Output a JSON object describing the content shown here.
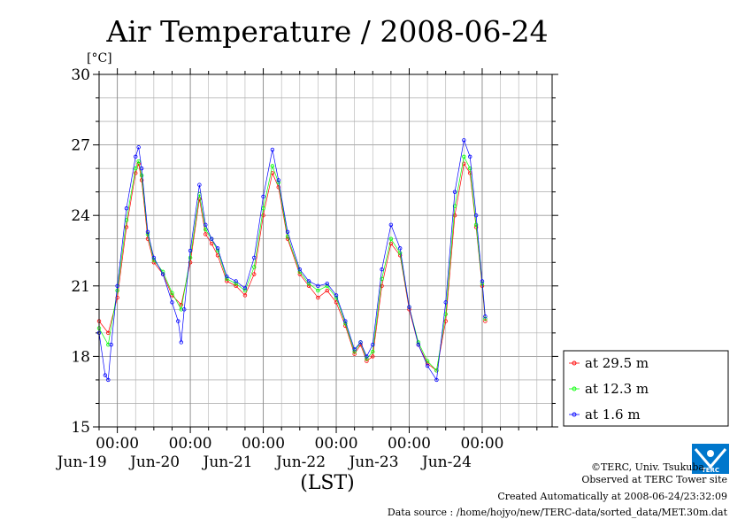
{
  "chart_data": {
    "type": "line",
    "title": "Air Temperature / 2008-06-24",
    "xlabel": "(LST)",
    "ylabel": "[°C]",
    "ylim": [
      15,
      30
    ],
    "yticks": [
      "15",
      "18",
      "21",
      "24",
      "27",
      "30"
    ],
    "x_range": [
      "2008-06-18 18:00",
      "2008-06-24 23:00"
    ],
    "x_ticks": [
      {
        "time": "2008-06-19 00:00",
        "label": "00:00",
        "date": "Jun-19"
      },
      {
        "time": "2008-06-20 00:00",
        "label": "00:00",
        "date": "Jun-20"
      },
      {
        "time": "2008-06-21 00:00",
        "label": "00:00",
        "date": "Jun-21"
      },
      {
        "time": "2008-06-22 00:00",
        "label": "00:00",
        "date": "Jun-22"
      },
      {
        "time": "2008-06-23 00:00",
        "label": "00:00",
        "date": "Jun-23"
      },
      {
        "time": "2008-06-24 00:00",
        "label": "00:00",
        "date": "Jun-24"
      }
    ],
    "grid": true,
    "legend_position": "lower-right outside",
    "series": [
      {
        "name": "at 29.5 m",
        "color": "#ff0000",
        "points": [
          [
            "2008-06-18 18:00",
            19.5
          ],
          [
            "2008-06-18 21:00",
            19.0
          ],
          [
            "2008-06-19 00:00",
            20.5
          ],
          [
            "2008-06-19 03:00",
            23.5
          ],
          [
            "2008-06-19 06:00",
            25.8
          ],
          [
            "2008-06-19 07:00",
            26.2
          ],
          [
            "2008-06-19 08:00",
            25.5
          ],
          [
            "2008-06-19 10:00",
            23.0
          ],
          [
            "2008-06-19 12:00",
            22.0
          ],
          [
            "2008-06-19 15:00",
            21.5
          ],
          [
            "2008-06-19 18:00",
            20.6
          ],
          [
            "2008-06-19 21:00",
            20.2
          ],
          [
            "2008-06-20 00:00",
            22.0
          ],
          [
            "2008-06-20 03:00",
            24.7
          ],
          [
            "2008-06-20 05:00",
            23.2
          ],
          [
            "2008-06-20 07:00",
            22.8
          ],
          [
            "2008-06-20 09:00",
            22.3
          ],
          [
            "2008-06-20 12:00",
            21.2
          ],
          [
            "2008-06-20 15:00",
            21.0
          ],
          [
            "2008-06-20 18:00",
            20.6
          ],
          [
            "2008-06-20 21:00",
            21.5
          ],
          [
            "2008-06-21 00:00",
            24.0
          ],
          [
            "2008-06-21 03:00",
            25.8
          ],
          [
            "2008-06-21 05:00",
            25.2
          ],
          [
            "2008-06-21 08:00",
            23.0
          ],
          [
            "2008-06-21 12:00",
            21.5
          ],
          [
            "2008-06-21 15:00",
            21.0
          ],
          [
            "2008-06-21 18:00",
            20.5
          ],
          [
            "2008-06-21 21:00",
            20.8
          ],
          [
            "2008-06-22 00:00",
            20.3
          ],
          [
            "2008-06-22 03:00",
            19.3
          ],
          [
            "2008-06-22 06:00",
            18.1
          ],
          [
            "2008-06-22 08:00",
            18.5
          ],
          [
            "2008-06-22 10:00",
            17.8
          ],
          [
            "2008-06-22 12:00",
            18.0
          ],
          [
            "2008-06-22 15:00",
            21.0
          ],
          [
            "2008-06-22 18:00",
            22.8
          ],
          [
            "2008-06-22 21:00",
            22.3
          ],
          [
            "2008-06-23 00:00",
            20.0
          ],
          [
            "2008-06-23 03:00",
            18.5
          ],
          [
            "2008-06-23 06:00",
            17.7
          ],
          [
            "2008-06-23 09:00",
            17.4
          ],
          [
            "2008-06-23 12:00",
            19.5
          ],
          [
            "2008-06-23 15:00",
            24.0
          ],
          [
            "2008-06-23 18:00",
            26.2
          ],
          [
            "2008-06-23 20:00",
            25.8
          ],
          [
            "2008-06-23 22:00",
            23.5
          ],
          [
            "2008-06-24 00:00",
            21.0
          ],
          [
            "2008-06-24 01:00",
            19.5
          ]
        ]
      },
      {
        "name": "at 12.3 m",
        "color": "#00ff00",
        "points": [
          [
            "2008-06-18 18:00",
            19.2
          ],
          [
            "2008-06-18 21:00",
            18.5
          ],
          [
            "2008-06-19 00:00",
            20.8
          ],
          [
            "2008-06-19 03:00",
            23.8
          ],
          [
            "2008-06-19 06:00",
            26.0
          ],
          [
            "2008-06-19 07:00",
            26.3
          ],
          [
            "2008-06-19 08:00",
            25.7
          ],
          [
            "2008-06-19 10:00",
            23.2
          ],
          [
            "2008-06-19 12:00",
            22.1
          ],
          [
            "2008-06-19 15:00",
            21.6
          ],
          [
            "2008-06-19 18:00",
            20.7
          ],
          [
            "2008-06-19 21:00",
            20.0
          ],
          [
            "2008-06-20 00:00",
            22.2
          ],
          [
            "2008-06-20 03:00",
            24.9
          ],
          [
            "2008-06-20 05:00",
            23.4
          ],
          [
            "2008-06-20 07:00",
            23.0
          ],
          [
            "2008-06-20 09:00",
            22.5
          ],
          [
            "2008-06-20 12:00",
            21.3
          ],
          [
            "2008-06-20 15:00",
            21.1
          ],
          [
            "2008-06-20 18:00",
            20.8
          ],
          [
            "2008-06-20 21:00",
            21.8
          ],
          [
            "2008-06-21 00:00",
            24.3
          ],
          [
            "2008-06-21 03:00",
            26.1
          ],
          [
            "2008-06-21 05:00",
            25.4
          ],
          [
            "2008-06-21 08:00",
            23.1
          ],
          [
            "2008-06-21 12:00",
            21.6
          ],
          [
            "2008-06-21 15:00",
            21.1
          ],
          [
            "2008-06-21 18:00",
            20.8
          ],
          [
            "2008-06-21 21:00",
            21.0
          ],
          [
            "2008-06-22 00:00",
            20.5
          ],
          [
            "2008-06-22 03:00",
            19.4
          ],
          [
            "2008-06-22 06:00",
            18.2
          ],
          [
            "2008-06-22 08:00",
            18.6
          ],
          [
            "2008-06-22 10:00",
            17.9
          ],
          [
            "2008-06-22 12:00",
            18.2
          ],
          [
            "2008-06-22 15:00",
            21.3
          ],
          [
            "2008-06-22 18:00",
            23.0
          ],
          [
            "2008-06-22 21:00",
            22.4
          ],
          [
            "2008-06-23 00:00",
            20.1
          ],
          [
            "2008-06-23 03:00",
            18.6
          ],
          [
            "2008-06-23 06:00",
            17.8
          ],
          [
            "2008-06-23 09:00",
            17.4
          ],
          [
            "2008-06-23 12:00",
            19.8
          ],
          [
            "2008-06-23 15:00",
            24.4
          ],
          [
            "2008-06-23 18:00",
            26.5
          ],
          [
            "2008-06-23 20:00",
            26.0
          ],
          [
            "2008-06-23 22:00",
            23.6
          ],
          [
            "2008-06-24 00:00",
            21.1
          ],
          [
            "2008-06-24 01:00",
            19.6
          ]
        ]
      },
      {
        "name": "at 1.6 m",
        "color": "#0000ff",
        "points": [
          [
            "2008-06-18 18:00",
            19.0
          ],
          [
            "2008-06-18 20:00",
            17.2
          ],
          [
            "2008-06-18 21:00",
            17.0
          ],
          [
            "2008-06-18 22:00",
            18.5
          ],
          [
            "2008-06-19 00:00",
            21.0
          ],
          [
            "2008-06-19 03:00",
            24.3
          ],
          [
            "2008-06-19 06:00",
            26.5
          ],
          [
            "2008-06-19 07:00",
            26.9
          ],
          [
            "2008-06-19 08:00",
            26.0
          ],
          [
            "2008-06-19 10:00",
            23.3
          ],
          [
            "2008-06-19 12:00",
            22.2
          ],
          [
            "2008-06-19 15:00",
            21.5
          ],
          [
            "2008-06-19 18:00",
            20.3
          ],
          [
            "2008-06-19 20:00",
            19.5
          ],
          [
            "2008-06-19 21:00",
            18.6
          ],
          [
            "2008-06-19 22:00",
            20.0
          ],
          [
            "2008-06-20 00:00",
            22.5
          ],
          [
            "2008-06-20 03:00",
            25.3
          ],
          [
            "2008-06-20 05:00",
            23.6
          ],
          [
            "2008-06-20 07:00",
            23.0
          ],
          [
            "2008-06-20 09:00",
            22.6
          ],
          [
            "2008-06-20 12:00",
            21.4
          ],
          [
            "2008-06-20 15:00",
            21.2
          ],
          [
            "2008-06-20 18:00",
            20.9
          ],
          [
            "2008-06-20 21:00",
            22.2
          ],
          [
            "2008-06-21 00:00",
            24.8
          ],
          [
            "2008-06-21 03:00",
            26.8
          ],
          [
            "2008-06-21 05:00",
            25.5
          ],
          [
            "2008-06-21 08:00",
            23.3
          ],
          [
            "2008-06-21 12:00",
            21.7
          ],
          [
            "2008-06-21 15:00",
            21.2
          ],
          [
            "2008-06-21 18:00",
            21.0
          ],
          [
            "2008-06-21 21:00",
            21.1
          ],
          [
            "2008-06-22 00:00",
            20.6
          ],
          [
            "2008-06-22 03:00",
            19.5
          ],
          [
            "2008-06-22 06:00",
            18.3
          ],
          [
            "2008-06-22 08:00",
            18.6
          ],
          [
            "2008-06-22 10:00",
            18.0
          ],
          [
            "2008-06-22 12:00",
            18.5
          ],
          [
            "2008-06-22 15:00",
            21.7
          ],
          [
            "2008-06-22 18:00",
            23.6
          ],
          [
            "2008-06-22 21:00",
            22.6
          ],
          [
            "2008-06-23 00:00",
            20.1
          ],
          [
            "2008-06-23 03:00",
            18.5
          ],
          [
            "2008-06-23 06:00",
            17.6
          ],
          [
            "2008-06-23 09:00",
            17.0
          ],
          [
            "2008-06-23 12:00",
            20.3
          ],
          [
            "2008-06-23 15:00",
            25.0
          ],
          [
            "2008-06-23 18:00",
            27.2
          ],
          [
            "2008-06-23 20:00",
            26.5
          ],
          [
            "2008-06-23 22:00",
            24.0
          ],
          [
            "2008-06-24 00:00",
            21.2
          ],
          [
            "2008-06-24 01:00",
            19.7
          ]
        ]
      }
    ]
  },
  "footer": {
    "credit": "©TERC, Univ. Tsukuba",
    "site": "Observed at TERC Tower site",
    "created": "Created Automatically at 2008-06-24/23:32:09",
    "source": "Data source : /home/hojyo/new/TERC-data/sorted_data/MET.30m.dat"
  },
  "logo": {
    "text": "TERC",
    "color": "#0077cc"
  }
}
